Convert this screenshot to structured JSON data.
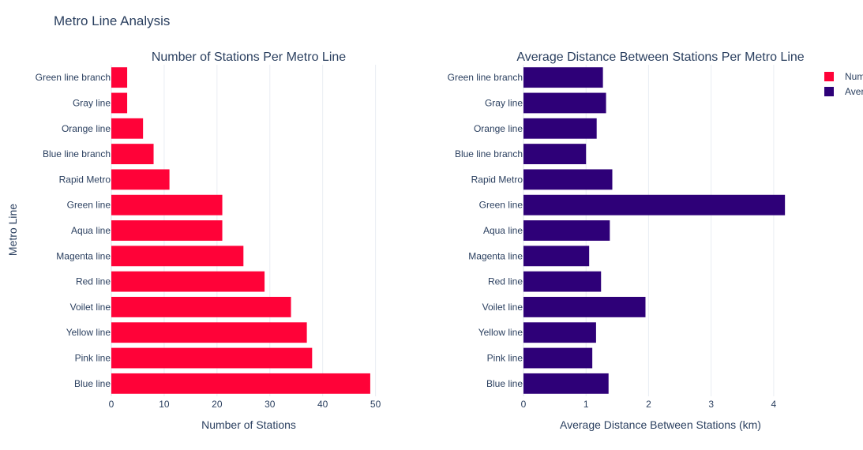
{
  "figure_title": "Metro Line Analysis",
  "y_axis_title": "Metro Line",
  "legend": {
    "items": [
      {
        "label": "Number of Stations",
        "color": "#ff0238"
      },
      {
        "label": "Average Distance Between Stations (km)",
        "color": "#2e0078"
      }
    ]
  },
  "chart_data": [
    {
      "type": "bar",
      "orientation": "horizontal",
      "title": "Number of Stations Per Metro Line",
      "xlabel": "Number of Stations",
      "ylabel": "Metro Line",
      "color": "#ff0238",
      "xlim": [
        0,
        52
      ],
      "xticks": [
        0,
        10,
        20,
        30,
        40,
        50
      ],
      "grid": true,
      "categories": [
        "Green line branch",
        "Gray line",
        "Orange line",
        "Blue line branch",
        "Rapid Metro",
        "Green line",
        "Aqua line",
        "Magenta line",
        "Red line",
        "Voilet line",
        "Yellow line",
        "Pink line",
        "Blue line"
      ],
      "values": [
        3,
        3,
        6,
        8,
        11,
        21,
        21,
        25,
        29,
        34,
        37,
        38,
        49
      ]
    },
    {
      "type": "bar",
      "orientation": "horizontal",
      "title": "Average Distance Between Stations Per Metro Line",
      "xlabel": "Average Distance Between Stations (km)",
      "ylabel": "",
      "color": "#2e0078",
      "xlim": [
        0,
        4.38
      ],
      "xticks": [
        0,
        1,
        2,
        3,
        4
      ],
      "grid": true,
      "categories": [
        "Green line branch",
        "Gray line",
        "Orange line",
        "Blue line branch",
        "Rapid Metro",
        "Green line",
        "Aqua line",
        "Magenta line",
        "Red line",
        "Voilet line",
        "Yellow line",
        "Pink line",
        "Blue line"
      ],
      "values": [
        1.27,
        1.32,
        1.17,
        1.0,
        1.42,
        4.18,
        1.38,
        1.05,
        1.24,
        1.95,
        1.16,
        1.1,
        1.36
      ]
    }
  ]
}
